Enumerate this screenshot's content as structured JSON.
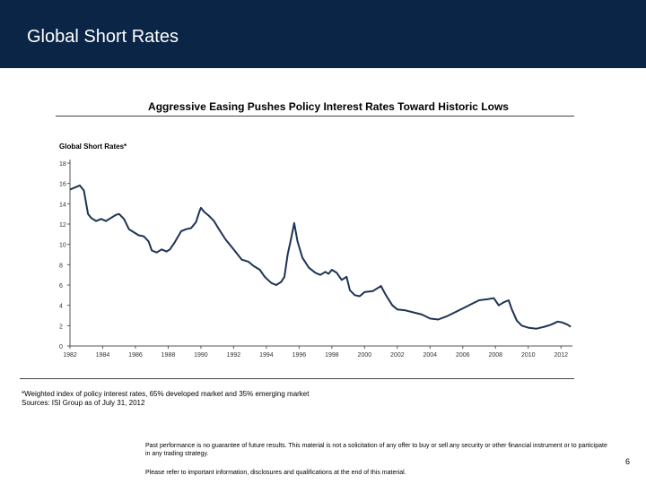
{
  "header": {
    "title": "Global Short Rates"
  },
  "chart_heading": "Aggressive Easing Pushes Policy Interest Rates Toward Historic Lows",
  "chart_data": {
    "type": "line",
    "title": "Global Short Rates*",
    "xlabel": "",
    "ylabel": "",
    "xlim": [
      1982,
      2012.7
    ],
    "ylim": [
      0,
      18
    ],
    "yticks": [
      0,
      2,
      4,
      6,
      8,
      10,
      12,
      14,
      16,
      18
    ],
    "xtick_labels": [
      "1982",
      "1984",
      "1986",
      "1988",
      "1990",
      "1992",
      "1994",
      "1996",
      "1998",
      "2000",
      "2002",
      "2004",
      "2006",
      "2008",
      "2010",
      "2012"
    ],
    "grid": false,
    "series": [
      {
        "color": "#1e3354",
        "x": [
          1982.0,
          1982.3,
          1982.6,
          1982.85,
          1983.1,
          1983.3,
          1983.6,
          1983.9,
          1984.2,
          1984.5,
          1984.8,
          1985.0,
          1985.3,
          1985.6,
          1985.9,
          1986.2,
          1986.5,
          1986.8,
          1987.0,
          1987.3,
          1987.6,
          1987.9,
          1988.1,
          1988.4,
          1988.8,
          1989.1,
          1989.4,
          1989.7,
          1989.9,
          1990.0,
          1990.2,
          1990.5,
          1990.8,
          1991.1,
          1991.5,
          1992.0,
          1992.5,
          1992.9,
          1993.2,
          1993.6,
          1993.9,
          1994.1,
          1994.3,
          1994.6,
          1994.9,
          1995.1,
          1995.3,
          1995.5,
          1995.7,
          1995.9,
          1996.2,
          1996.6,
          1997.0,
          1997.3,
          1997.6,
          1997.8,
          1998.0,
          1998.3,
          1998.6,
          1998.9,
          1999.1,
          1999.4,
          1999.7,
          2000.0,
          2000.5,
          2001.0,
          2001.3,
          2001.7,
          2002.0,
          2002.5,
          2003.0,
          2003.5,
          2004.0,
          2004.5,
          2005.0,
          2005.5,
          2006.0,
          2006.5,
          2007.0,
          2007.5,
          2007.9,
          2008.2,
          2008.5,
          2008.8,
          2009.0,
          2009.3,
          2009.6,
          2010.0,
          2010.5,
          2011.0,
          2011.4,
          2011.8,
          2012.1,
          2012.4,
          2012.6
        ],
        "y": [
          15.4,
          15.6,
          15.8,
          15.3,
          13.0,
          12.6,
          12.3,
          12.5,
          12.3,
          12.6,
          12.9,
          13.0,
          12.5,
          11.5,
          11.2,
          10.9,
          10.8,
          10.3,
          9.4,
          9.2,
          9.5,
          9.3,
          9.5,
          10.2,
          11.3,
          11.5,
          11.6,
          12.2,
          13.2,
          13.6,
          13.2,
          12.8,
          12.3,
          11.5,
          10.5,
          9.5,
          8.5,
          8.3,
          7.9,
          7.5,
          6.8,
          6.5,
          6.2,
          6.0,
          6.3,
          6.8,
          9.0,
          10.5,
          12.1,
          10.3,
          8.7,
          7.7,
          7.2,
          7.0,
          7.3,
          7.1,
          7.5,
          7.2,
          6.5,
          6.8,
          5.5,
          5.0,
          4.9,
          5.3,
          5.4,
          5.9,
          5.0,
          4.0,
          3.6,
          3.5,
          3.3,
          3.1,
          2.7,
          2.6,
          2.9,
          3.3,
          3.7,
          4.1,
          4.5,
          4.6,
          4.7,
          4.0,
          4.3,
          4.5,
          3.6,
          2.5,
          2.0,
          1.8,
          1.7,
          1.9,
          2.1,
          2.4,
          2.3,
          2.1,
          1.9
        ]
      }
    ]
  },
  "footnotes": [
    "*Weighted index of policy interest rates, 65% developed market and 35% emerging market",
    "Sources: ISI Group as of July 31, 2012"
  ],
  "disclaimer": [
    "Past performance is no guarantee of future results. This material is not a solicitation of any offer to buy or sell any security or other financial instrument or to participate in any trading strategy.",
    "Please refer to important information, disclosures and qualifications at the end of this material."
  ],
  "page_number": "6"
}
